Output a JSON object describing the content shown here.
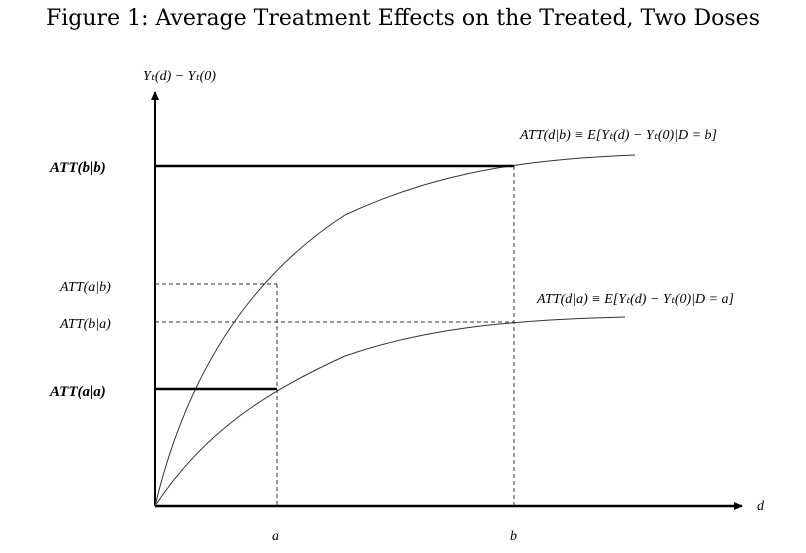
{
  "title": "Figure 1: Average Treatment Effects on the Treated, Two Doses",
  "y_axis_label": "Yₜ(d) − Yₜ(0)",
  "x_axis_label": "d",
  "y_tick_labels": {
    "att_bb": "ATT(b|b)",
    "att_ab": "ATT(a|b)",
    "att_ba": "ATT(b|a)",
    "att_aa": "ATT(a|a)"
  },
  "x_tick_labels": {
    "a": "a",
    "b": "b"
  },
  "curve_labels": {
    "upper": "ATT(d|b) ≡ E[Yₜ(d) − Yₜ(0)|D = b]",
    "lower": "ATT(d|a) ≡ E[Yₜ(d) − Yₜ(0)|D = a]"
  }
}
